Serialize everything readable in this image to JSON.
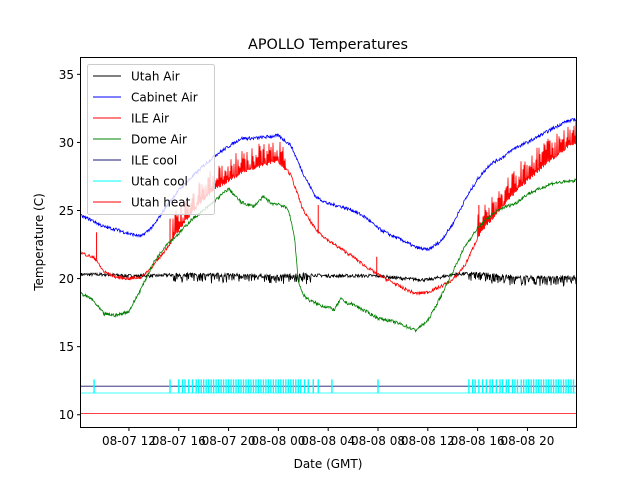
{
  "chart_data": {
    "type": "line",
    "title": "APOLLO Temperatures",
    "xlabel": "Date (GMT)",
    "ylabel": "Temperature (C)",
    "x_units": "hours since 08-07 00:00 GMT",
    "xlim": [
      8.15,
      47.9
    ],
    "ylim": [
      9.1,
      36.2
    ],
    "grid": false,
    "legend_position": "top-left",
    "xticks": [
      {
        "value": 12,
        "label": "08-07 12"
      },
      {
        "value": 16,
        "label": "08-07 16"
      },
      {
        "value": 20,
        "label": "08-07 20"
      },
      {
        "value": 24,
        "label": "08-08 00"
      },
      {
        "value": 28,
        "label": "08-08 04"
      },
      {
        "value": 32,
        "label": "08-08 08"
      },
      {
        "value": 36,
        "label": "08-08 12"
      },
      {
        "value": 40,
        "label": "08-08 16"
      },
      {
        "value": 44,
        "label": "08-08 20"
      }
    ],
    "yticks": [
      {
        "value": 10,
        "label": "10"
      },
      {
        "value": 15,
        "label": "15"
      },
      {
        "value": 20,
        "label": "20"
      },
      {
        "value": 25,
        "label": "25"
      },
      {
        "value": 30,
        "label": "30"
      },
      {
        "value": 35,
        "label": "35"
      }
    ],
    "series": [
      {
        "name": "Utah Air",
        "color": "#000000",
        "x": [
          8.15,
          10,
          12,
          14,
          16,
          18,
          20,
          22,
          24,
          26,
          28,
          30,
          32,
          34,
          36,
          38,
          40,
          42,
          44,
          46,
          47.9
        ],
        "y": [
          20.3,
          20.3,
          20.2,
          20.2,
          20.3,
          20.3,
          20.3,
          20.2,
          20.2,
          20.3,
          20.2,
          20.2,
          20.2,
          20.0,
          19.9,
          20.3,
          20.4,
          20.2,
          20.1,
          20.1,
          20.1
        ],
        "noise_bands": [
          [
            15.5,
            26.8,
            0.6
          ],
          [
            39.2,
            47.9,
            0.6
          ]
        ]
      },
      {
        "name": "Cabinet Air",
        "color": "#0000ff",
        "x": [
          8.15,
          9,
          10,
          11,
          12,
          13,
          14,
          15,
          16,
          17,
          18,
          19,
          20,
          21,
          22,
          23,
          24,
          25,
          26,
          27,
          28,
          29,
          30,
          31,
          32,
          33,
          34,
          35,
          36,
          37,
          38,
          39,
          40,
          41,
          42,
          43,
          44,
          45,
          46,
          47,
          47.9
        ],
        "y": [
          24.6,
          24.3,
          23.8,
          23.6,
          23.3,
          23.1,
          23.9,
          25.3,
          26.5,
          27.4,
          28.3,
          29.1,
          29.7,
          30.3,
          30.3,
          30.4,
          30.5,
          29.8,
          27.7,
          26.0,
          25.5,
          25.3,
          25.0,
          24.5,
          23.7,
          23.2,
          22.8,
          22.3,
          22.1,
          22.7,
          24.0,
          25.8,
          27.3,
          28.4,
          28.9,
          29.6,
          30.0,
          30.5,
          31.0,
          31.5,
          31.7
        ]
      },
      {
        "name": "ILE Air",
        "color": "#ff0000",
        "x": [
          8.15,
          9,
          9.4,
          9.6,
          10,
          11,
          12,
          13,
          14,
          15,
          16,
          17,
          18,
          19,
          20,
          21,
          22,
          23,
          24,
          25,
          26,
          27,
          28,
          29,
          30,
          31,
          32,
          33,
          34,
          35,
          36,
          37,
          38,
          39,
          40,
          41,
          42,
          43,
          44,
          45,
          46,
          47,
          47.9
        ],
        "y": [
          21.9,
          21.6,
          21.4,
          21.0,
          20.5,
          20.1,
          20.0,
          20.1,
          21.0,
          22.2,
          23.5,
          24.8,
          25.8,
          26.6,
          27.2,
          27.7,
          28.1,
          28.4,
          28.6,
          27.6,
          25.0,
          23.6,
          22.8,
          22.2,
          21.6,
          20.9,
          20.3,
          19.8,
          19.3,
          18.9,
          19.0,
          19.4,
          19.9,
          21.0,
          23.0,
          24.2,
          25.3,
          26.3,
          27.2,
          28.0,
          28.8,
          29.5,
          30.0
        ],
        "spike_bands": [
          [
            15.5,
            24.8,
            1.8
          ],
          [
            40,
            47.9,
            1.8
          ]
        ],
        "spikes": [
          [
            9.4,
            23.4
          ],
          [
            15.3,
            24.4
          ],
          [
            27.2,
            25.4
          ],
          [
            31.9,
            21.6
          ],
          [
            40.1,
            25.4
          ]
        ]
      },
      {
        "name": "Dome Air",
        "color": "#008000",
        "x": [
          8.15,
          9,
          10,
          11,
          12,
          13,
          14,
          15,
          16,
          17,
          18,
          19,
          20,
          21,
          22,
          22.8,
          23.5,
          24,
          24.8,
          25.3,
          25.6,
          26,
          26.5,
          27,
          27.5,
          28,
          28.5,
          29,
          29.5,
          30,
          31,
          32,
          33,
          34,
          35,
          36,
          37,
          38,
          39,
          40,
          41,
          42,
          43,
          44,
          45,
          46,
          47,
          47.9
        ],
        "y": [
          18.9,
          18.5,
          17.4,
          17.3,
          17.6,
          19.3,
          21.2,
          22.5,
          23.3,
          24.3,
          25.0,
          25.8,
          26.6,
          25.6,
          25.3,
          26.0,
          25.5,
          25.5,
          25.1,
          23.0,
          19.8,
          18.8,
          18.4,
          18.2,
          18.0,
          17.9,
          17.7,
          18.5,
          18.2,
          18.1,
          17.6,
          17.1,
          16.9,
          16.6,
          16.2,
          16.9,
          18.6,
          20.5,
          22.4,
          23.7,
          24.6,
          25.2,
          25.5,
          26.2,
          26.6,
          27.0,
          27.1,
          27.2
        ]
      },
      {
        "name": "ILE cool",
        "color": "#191970",
        "x": [
          8.15,
          47.9
        ],
        "y": [
          12.1,
          12.1
        ]
      },
      {
        "name": "Utah cool",
        "color": "#00ffff",
        "x": [
          8.15,
          47.9
        ],
        "y": [
          11.6,
          11.6
        ],
        "pulse_top": 12.6,
        "pulses": [
          9.2,
          15.3,
          16.0,
          16.3,
          16.5,
          16.8,
          17.1,
          17.4,
          17.6,
          17.8,
          18.0,
          18.2,
          18.4,
          18.6,
          18.8,
          19.0,
          19.2,
          19.4,
          19.6,
          19.8,
          20.0,
          20.2,
          20.4,
          20.6,
          20.8,
          21.0,
          21.2,
          21.4,
          21.6,
          21.8,
          22.0,
          22.2,
          22.4,
          22.6,
          22.8,
          23.0,
          23.2,
          23.4,
          23.6,
          23.8,
          24.0,
          24.2,
          24.4,
          24.6,
          24.8,
          25.0,
          25.2,
          25.4,
          25.6,
          25.8,
          26.1,
          26.4,
          26.8,
          27.2,
          28.3,
          32.0,
          39.3,
          39.6,
          39.8,
          40.1,
          40.4,
          40.7,
          41.0,
          41.2,
          41.5,
          41.8,
          42.0,
          42.3,
          42.5,
          42.8,
          43.0,
          43.2,
          43.5,
          43.7,
          43.9,
          44.1,
          44.3,
          44.5,
          44.7,
          44.9,
          45.1,
          45.3,
          45.5,
          45.7,
          45.9,
          46.1,
          46.3,
          46.5,
          46.7,
          46.9,
          47.1,
          47.3,
          47.5,
          47.7
        ]
      },
      {
        "name": "Utah heat",
        "color": "#ff0000",
        "x": [
          8.15,
          47.9
        ],
        "y": [
          10.1,
          10.1
        ]
      }
    ]
  }
}
